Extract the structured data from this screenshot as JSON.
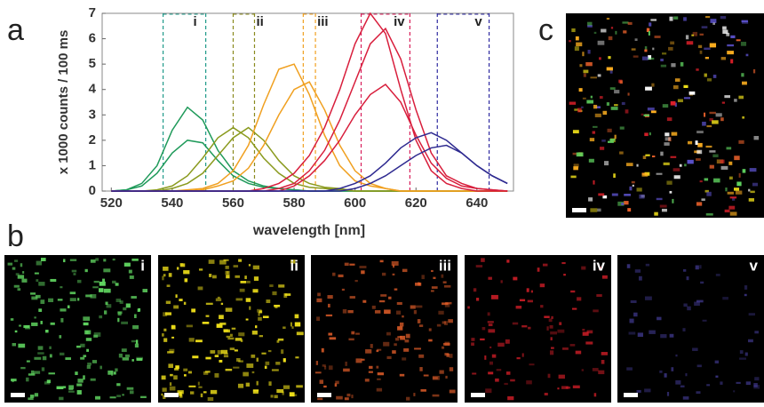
{
  "chart_data": {
    "type": "line",
    "y_label": "x 1000 counts / 100 ms",
    "x_label": "wavelength [nm]",
    "x": [
      520,
      525,
      530,
      535,
      540,
      545,
      550,
      555,
      560,
      565,
      570,
      575,
      580,
      585,
      590,
      595,
      600,
      605,
      610,
      615,
      620,
      625,
      630,
      635,
      640,
      645,
      650
    ],
    "xlim": [
      517,
      652
    ],
    "ylim": [
      0,
      7
    ],
    "xticks": [
      520,
      540,
      560,
      580,
      600,
      620,
      640
    ],
    "yticks": [
      0,
      1,
      2,
      3,
      4,
      5,
      6,
      7
    ],
    "series": [
      {
        "color": "#1f9a5a",
        "values": [
          0,
          0.05,
          0.3,
          1.0,
          2.4,
          3.3,
          2.8,
          1.6,
          0.8,
          0.4,
          0.2,
          0.1,
          0.05,
          0,
          0,
          0,
          0,
          0,
          0,
          0,
          0,
          0,
          0,
          0,
          0,
          0,
          0
        ]
      },
      {
        "color": "#1f9a5a",
        "values": [
          0,
          0.05,
          0.2,
          0.7,
          1.5,
          2.0,
          1.9,
          1.2,
          0.6,
          0.3,
          0.15,
          0.1,
          0.05,
          0,
          0,
          0,
          0,
          0,
          0,
          0,
          0,
          0,
          0,
          0,
          0,
          0,
          0
        ]
      },
      {
        "color": "#8a9a1e",
        "values": [
          0,
          0,
          0,
          0.05,
          0.2,
          0.6,
          1.3,
          2.1,
          2.5,
          2.1,
          1.3,
          0.7,
          0.3,
          0.15,
          0.1,
          0.05,
          0,
          0,
          0,
          0,
          0,
          0,
          0,
          0,
          0,
          0,
          0
        ]
      },
      {
        "color": "#8a9a1e",
        "values": [
          0,
          0,
          0,
          0,
          0.1,
          0.3,
          0.7,
          1.4,
          2.1,
          2.5,
          2.0,
          1.2,
          0.6,
          0.3,
          0.15,
          0.1,
          0,
          0,
          0,
          0,
          0,
          0,
          0,
          0,
          0,
          0,
          0
        ]
      },
      {
        "color": "#f0a020",
        "values": [
          0,
          0,
          0,
          0,
          0,
          0.05,
          0.1,
          0.3,
          0.8,
          1.8,
          3.4,
          4.8,
          5.0,
          3.8,
          2.2,
          1.0,
          0.4,
          0.2,
          0.1,
          0,
          0,
          0,
          0,
          0,
          0,
          0,
          0
        ]
      },
      {
        "color": "#f0a020",
        "values": [
          0,
          0,
          0,
          0,
          0,
          0,
          0.05,
          0.2,
          0.4,
          0.9,
          1.8,
          3.0,
          4.0,
          4.3,
          3.2,
          1.8,
          0.8,
          0.3,
          0.1,
          0,
          0,
          0,
          0,
          0,
          0,
          0,
          0
        ]
      },
      {
        "color": "#d81e3c",
        "values": [
          0,
          0,
          0,
          0,
          0,
          0,
          0,
          0,
          0,
          0,
          0.1,
          0.3,
          0.7,
          1.4,
          2.5,
          4.0,
          5.8,
          7.0,
          6.2,
          4.0,
          2.0,
          0.8,
          0.3,
          0.1,
          0,
          0,
          0
        ]
      },
      {
        "color": "#d81e3c",
        "values": [
          0,
          0,
          0,
          0,
          0,
          0,
          0,
          0,
          0,
          0,
          0,
          0.1,
          0.3,
          0.8,
          1.6,
          2.8,
          4.3,
          5.8,
          6.4,
          5.2,
          3.2,
          1.5,
          0.6,
          0.3,
          0.1,
          0.05,
          0
        ]
      },
      {
        "color": "#d81e3c",
        "values": [
          0,
          0,
          0,
          0,
          0,
          0,
          0,
          0,
          0,
          0,
          0,
          0,
          0.2,
          0.6,
          1.2,
          2.0,
          3.0,
          3.8,
          4.2,
          3.5,
          2.2,
          1.1,
          0.5,
          0.2,
          0.1,
          0.05,
          0
        ]
      },
      {
        "color": "#2e2a90",
        "values": [
          0,
          0,
          0,
          0,
          0,
          0,
          0,
          0,
          0,
          0,
          0,
          0,
          0,
          0,
          0,
          0.1,
          0.3,
          0.6,
          1.1,
          1.7,
          2.1,
          2.3,
          2.0,
          1.5,
          1.0,
          0.6,
          0.3
        ]
      },
      {
        "color": "#2e2a90",
        "values": [
          0,
          0,
          0,
          0,
          0,
          0,
          0,
          0,
          0,
          0,
          0,
          0,
          0,
          0,
          0,
          0,
          0.1,
          0.3,
          0.6,
          1.0,
          1.4,
          1.7,
          1.8,
          1.5,
          1.0,
          0.6,
          0.3
        ]
      }
    ],
    "bands": [
      {
        "label": "i",
        "range": [
          537,
          551
        ],
        "color": "#1f9a8a"
      },
      {
        "label": "ii",
        "range": [
          560,
          567
        ],
        "color": "#8a8a1e"
      },
      {
        "label": "iii",
        "range": [
          583,
          587
        ],
        "color": "#f0a020"
      },
      {
        "label": "iv",
        "range": [
          602,
          618
        ],
        "color": "#d81e5a"
      },
      {
        "label": "v",
        "range": [
          627,
          644
        ],
        "color": "#2e2aa0"
      }
    ]
  },
  "panel_labels": [
    "a",
    "b",
    "c"
  ],
  "images": [
    {
      "label": "i",
      "color": "#5fd35f"
    },
    {
      "label": "ii",
      "color": "#f2e21a"
    },
    {
      "label": "iii",
      "color": "#e8602a"
    },
    {
      "label": "iv",
      "color": "#e0202a"
    },
    {
      "label": "v",
      "color": "#5a50c8"
    }
  ]
}
